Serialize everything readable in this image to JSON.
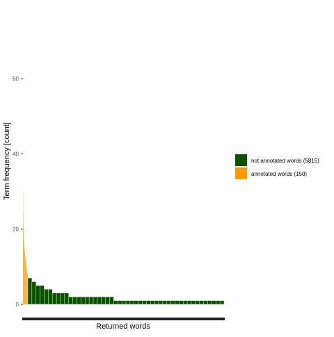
{
  "chart_data": {
    "type": "bar",
    "title": "",
    "xlabel": "Returned words",
    "ylabel": "Term frequency [count]",
    "ylim": [
      0,
      65
    ],
    "yticks": [
      0,
      20,
      40,
      60
    ],
    "grid": false,
    "legend_position": "right",
    "series": [
      {
        "name": "annotated words (150)",
        "color": "#FF9900",
        "count": 150,
        "values": [
          30,
          25,
          21,
          19,
          18,
          17,
          16,
          15,
          15,
          14,
          14,
          13,
          13,
          12,
          12,
          11,
          11,
          10,
          10,
          10,
          9,
          9,
          9,
          8,
          8,
          8
        ]
      },
      {
        "name": "not annotated words (5815)",
        "color": "#0A5200",
        "count": 5815,
        "values": [
          7,
          6,
          5,
          5,
          4,
          4,
          3,
          3,
          3,
          3,
          2,
          2,
          2,
          2,
          2,
          2,
          2,
          2,
          2,
          2,
          2,
          1,
          1,
          1,
          1,
          1,
          1,
          1,
          1,
          1,
          1,
          1,
          1,
          1,
          1,
          1,
          1,
          1,
          1,
          1,
          1,
          1,
          1,
          1,
          1,
          1,
          1,
          1
        ]
      }
    ]
  }
}
